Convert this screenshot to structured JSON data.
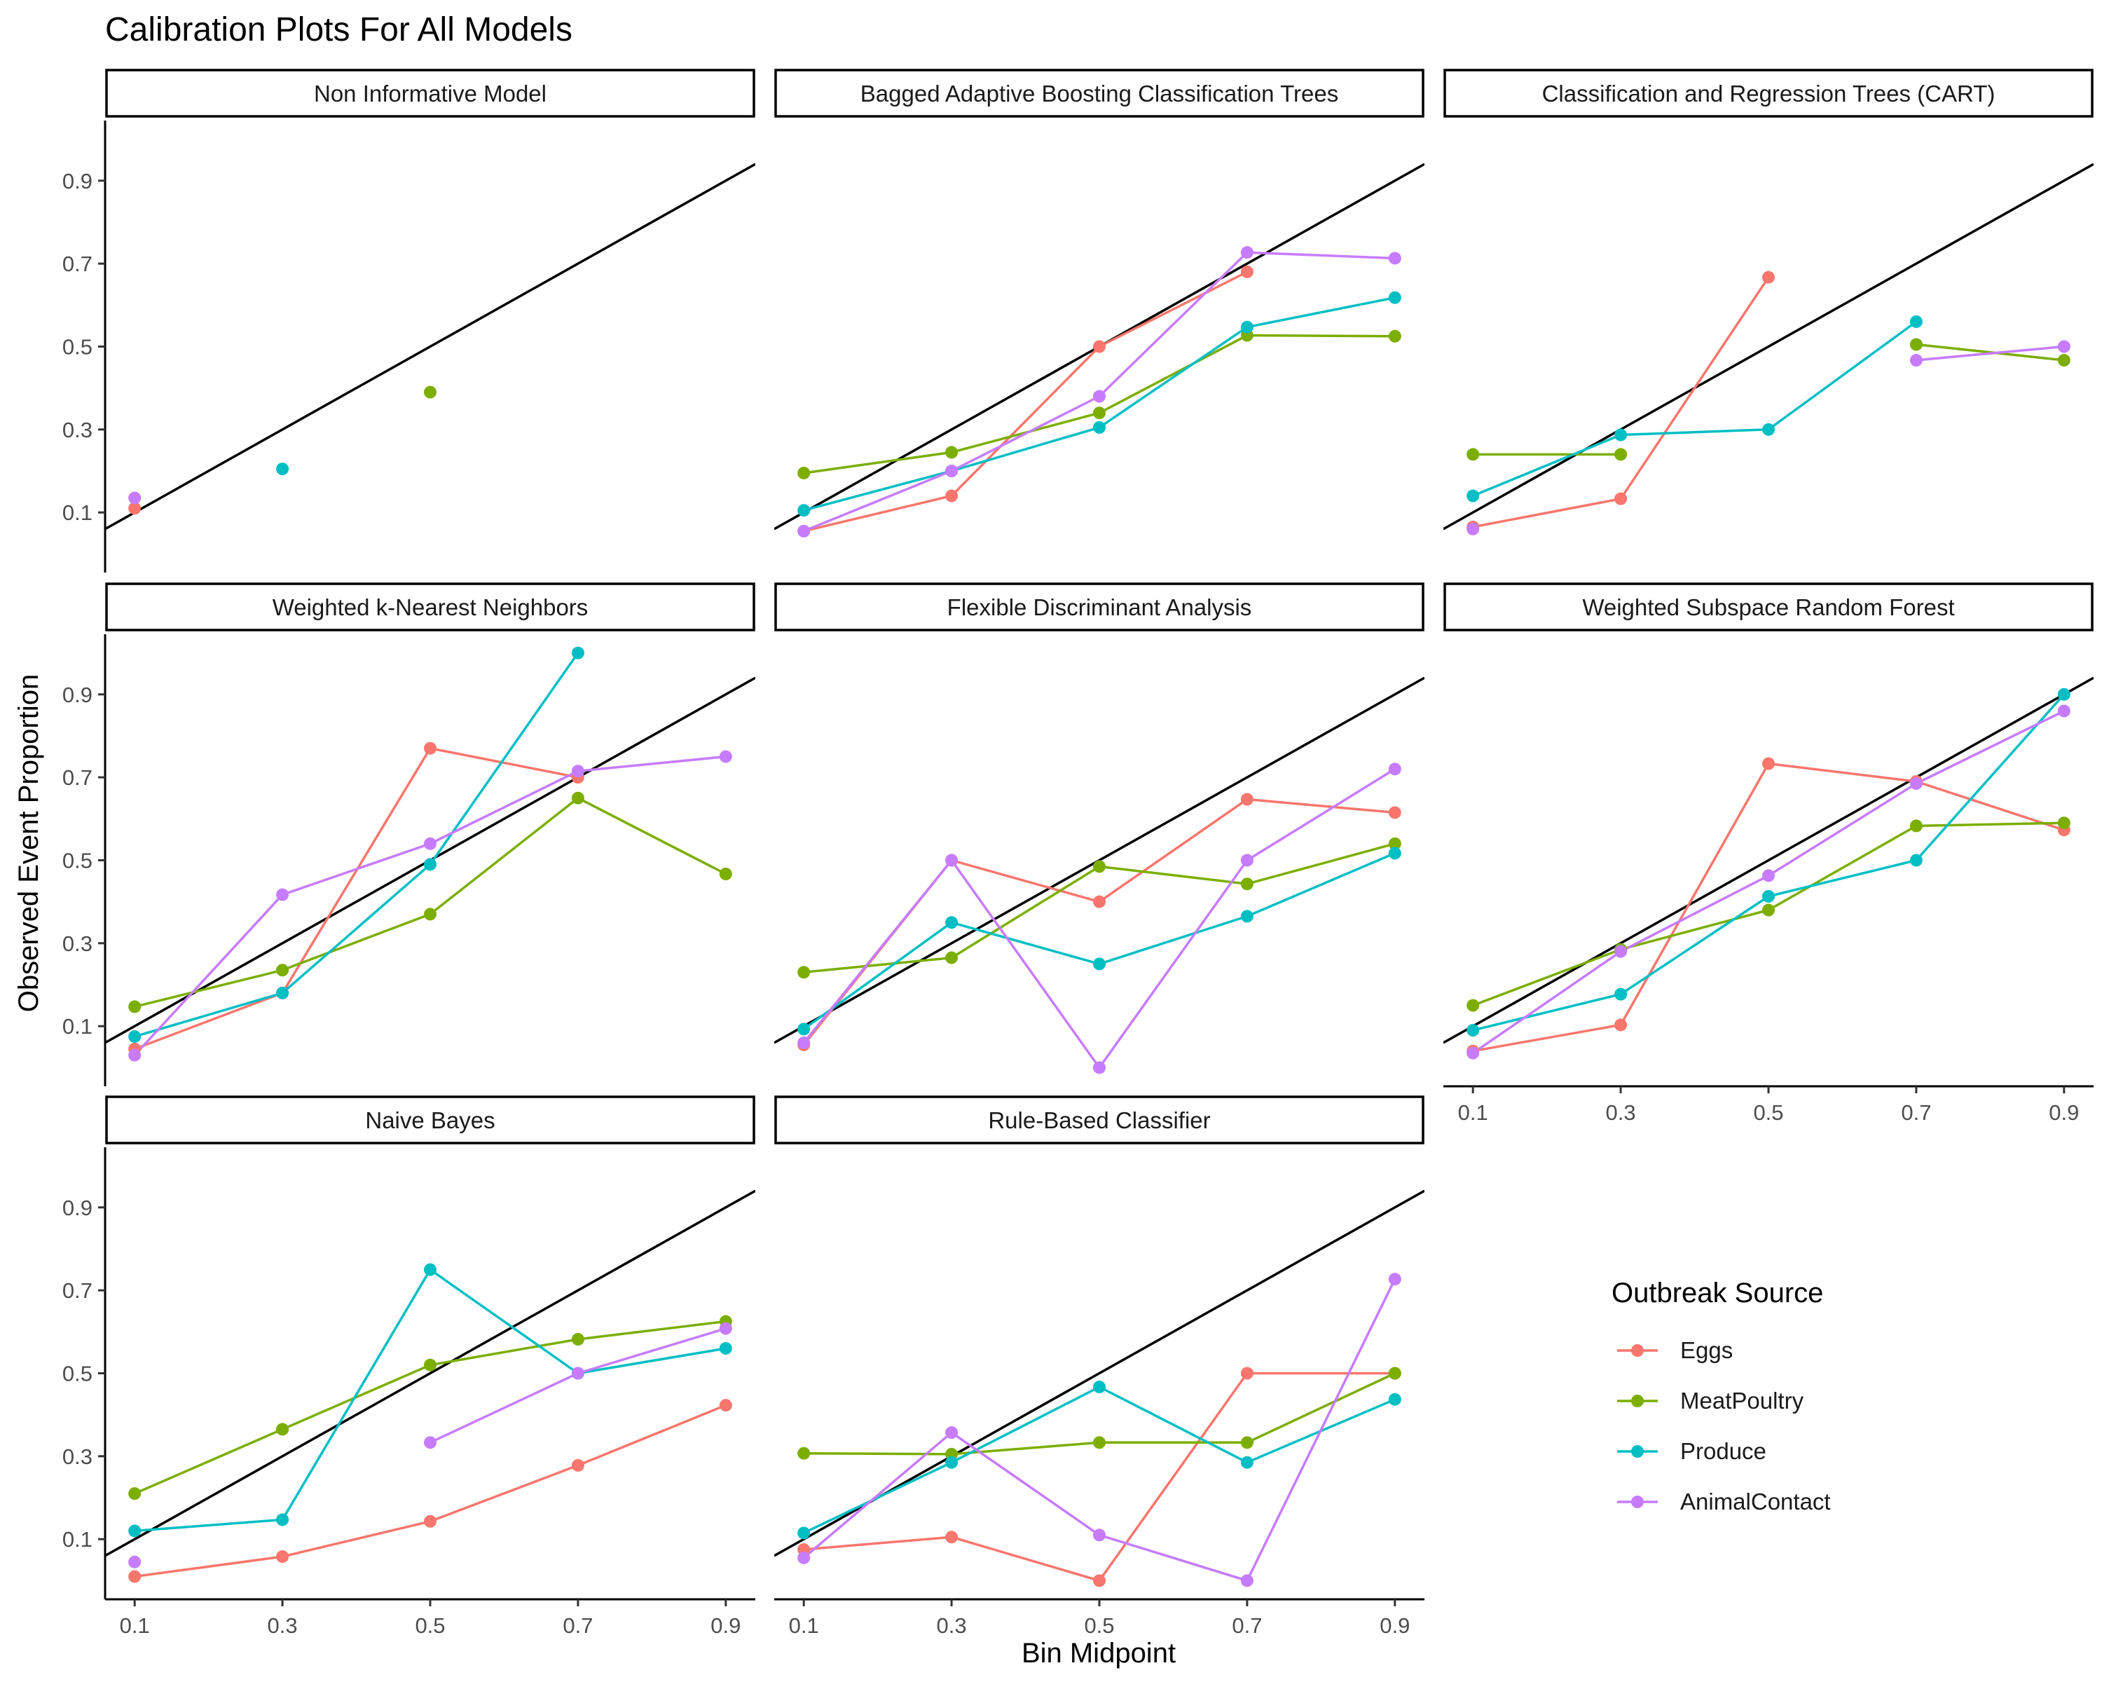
{
  "chart_data": {
    "type": "line",
    "title": "Calibration Plots For All Models",
    "xlabel": "Bin Midpoint",
    "ylabel": "Observed Event Proportion",
    "x": [
      0.1,
      0.3,
      0.5,
      0.7,
      0.9
    ],
    "x_ticks": [
      "0.1",
      "0.3",
      "0.5",
      "0.7",
      "0.9"
    ],
    "y_ticks": [
      "0.1",
      "0.3",
      "0.5",
      "0.7",
      "0.9"
    ],
    "xlim": [
      0.06,
      0.94
    ],
    "ylim": [
      -0.045,
      1.045
    ],
    "reference_line": "y = x",
    "grid": false,
    "legend": {
      "title": "Outbreak Source",
      "position": "right",
      "entries": [
        "Eggs",
        "MeatPoultry",
        "Produce",
        "AnimalContact"
      ]
    },
    "colors": {
      "Eggs": "#F8766D",
      "MeatPoultry": "#7CAE00",
      "Produce": "#00BFC4",
      "AnimalContact": "#C77CFF",
      "reference": "#000000"
    },
    "panels": [
      {
        "title": "Non Informative Model",
        "series": {
          "Eggs": [
            0.11,
            null,
            null,
            null,
            null
          ],
          "MeatPoultry": [
            null,
            null,
            0.39,
            null,
            null
          ],
          "Produce": [
            null,
            0.205,
            null,
            null,
            null
          ],
          "AnimalContact": [
            0.135,
            null,
            null,
            null,
            null
          ]
        }
      },
      {
        "title": "Bagged Adaptive Boosting Classification Trees",
        "series": {
          "Eggs": [
            0.055,
            0.14,
            0.5,
            0.68,
            null
          ],
          "MeatPoultry": [
            0.195,
            0.245,
            0.34,
            0.527,
            0.525
          ],
          "Produce": [
            0.105,
            0.2,
            0.305,
            0.547,
            0.618
          ],
          "AnimalContact": [
            0.055,
            0.2,
            0.38,
            0.727,
            0.713
          ]
        }
      },
      {
        "title": "Classification and Regression Trees (CART)",
        "series": {
          "Eggs": [
            0.065,
            0.133,
            0.667,
            null,
            null
          ],
          "MeatPoultry": [
            0.24,
            0.24,
            null,
            0.505,
            0.467
          ],
          "Produce": [
            0.14,
            0.287,
            0.3,
            0.56,
            null
          ],
          "AnimalContact": [
            0.06,
            null,
            null,
            0.467,
            0.5
          ]
        }
      },
      {
        "title": "Weighted k-Nearest Neighbors",
        "series": {
          "Eggs": [
            0.045,
            0.18,
            0.77,
            0.7,
            null
          ],
          "MeatPoultry": [
            0.147,
            0.235,
            0.37,
            0.65,
            0.467
          ],
          "Produce": [
            0.075,
            0.18,
            0.49,
            1.0,
            null
          ],
          "AnimalContact": [
            0.03,
            0.417,
            0.54,
            0.715,
            0.75
          ]
        }
      },
      {
        "title": "Flexible Discriminant Analysis",
        "series": {
          "Eggs": [
            0.055,
            0.5,
            0.4,
            0.647,
            0.615
          ],
          "MeatPoultry": [
            0.23,
            0.265,
            0.485,
            0.443,
            0.54
          ],
          "Produce": [
            0.093,
            0.35,
            0.25,
            0.365,
            0.517
          ],
          "AnimalContact": [
            0.06,
            0.5,
            0.0,
            0.5,
            0.72
          ]
        }
      },
      {
        "title": "Weighted Subspace Random Forest",
        "series": {
          "Eggs": [
            0.04,
            0.103,
            0.733,
            0.69,
            0.573
          ],
          "MeatPoultry": [
            0.15,
            0.285,
            0.38,
            0.583,
            0.59
          ],
          "Produce": [
            0.09,
            0.177,
            0.413,
            0.5,
            0.9
          ],
          "AnimalContact": [
            0.035,
            0.28,
            0.463,
            0.685,
            0.86
          ]
        }
      },
      {
        "title": "Naive Bayes",
        "series": {
          "Eggs": [
            0.01,
            0.058,
            0.143,
            0.278,
            0.423
          ],
          "MeatPoultry": [
            0.21,
            0.365,
            0.52,
            0.582,
            0.625
          ],
          "Produce": [
            0.12,
            0.147,
            0.75,
            0.5,
            0.56
          ],
          "AnimalContact": [
            0.045,
            null,
            0.333,
            0.5,
            0.608
          ]
        }
      },
      {
        "title": "Rule-Based Classifier",
        "series": {
          "Eggs": [
            0.075,
            0.105,
            0.0,
            0.5,
            0.5
          ],
          "MeatPoultry": [
            0.307,
            0.305,
            0.333,
            0.333,
            0.5
          ],
          "Produce": [
            0.115,
            0.285,
            0.467,
            0.285,
            0.437
          ],
          "AnimalContact": [
            0.055,
            0.357,
            0.11,
            0.0,
            0.727
          ]
        }
      }
    ]
  }
}
